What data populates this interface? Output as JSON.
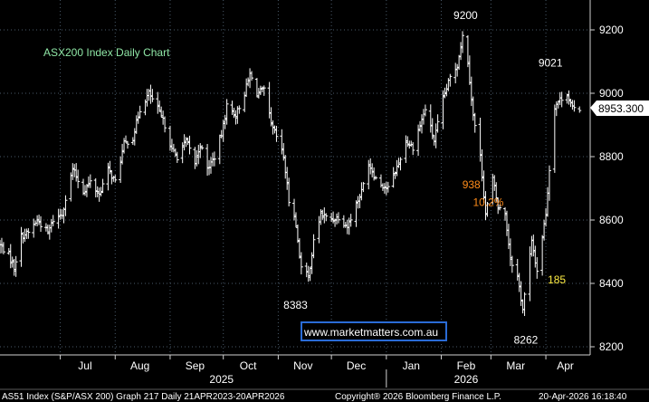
{
  "chart_data": {
    "type": "ohlc",
    "title": "ASX200 Index Daily Chart",
    "ylim": [
      8200,
      9300
    ],
    "yticks": [
      8200,
      8400,
      8600,
      8800,
      9000,
      9200
    ],
    "grid": true,
    "last_price_label": "8953.300",
    "last_price": 8953.3,
    "months": [
      {
        "label": "Jul",
        "x": "2025-07-15"
      },
      {
        "label": "Aug",
        "x": "2025-08-15"
      },
      {
        "label": "Sep",
        "x": "2025-09-15"
      },
      {
        "label": "Oct",
        "x": "2025-10-15"
      },
      {
        "label": "Nov",
        "x": "2025-11-15"
      },
      {
        "label": "Dec",
        "x": "2025-12-15"
      },
      {
        "label": "Jan",
        "x": "2026-01-15"
      },
      {
        "label": "Feb",
        "x": "2026-02-15"
      },
      {
        "label": "Mar",
        "x": "2026-03-15"
      },
      {
        "label": "Apr",
        "x": "2026-04-12"
      }
    ],
    "years": [
      {
        "label": "2025",
        "x": "2025-09-30"
      },
      {
        "label": "2026",
        "x": "2026-02-15"
      }
    ],
    "year_divider": "2026-01-01",
    "x_start": "2025-05-28",
    "x_end": "2026-04-26",
    "annotations": [
      {
        "text": "9200",
        "x": "2026-02-13",
        "y": 9200,
        "color": "white"
      },
      {
        "text": "9021",
        "x": "2026-04-06",
        "y": 9021,
        "color": "white"
      },
      {
        "text": "8383",
        "x": "2025-11-07",
        "y": 8383,
        "color": "white"
      },
      {
        "text": "8262",
        "x": "2026-03-19",
        "y": 8262,
        "color": "white"
      },
      {
        "text": "938",
        "x": "2026-02-21",
        "y": 8700,
        "color": "orange"
      },
      {
        "text": "10.2%",
        "x": "2026-02-27",
        "y": 8645,
        "color": "orange"
      },
      {
        "text": "185",
        "x": "2026-03-31",
        "y": 8400,
        "color": "yellow"
      }
    ],
    "control_points": [
      [
        "2025-05-28",
        8520
      ],
      [
        "2025-06-02",
        8490
      ],
      [
        "2025-06-05",
        8450
      ],
      [
        "2025-06-09",
        8550
      ],
      [
        "2025-06-13",
        8560
      ],
      [
        "2025-06-18",
        8600
      ],
      [
        "2025-06-24",
        8560
      ],
      [
        "2025-06-27",
        8600
      ],
      [
        "2025-07-02",
        8620
      ],
      [
        "2025-07-08",
        8760
      ],
      [
        "2025-07-14",
        8690
      ],
      [
        "2025-07-18",
        8720
      ],
      [
        "2025-07-23",
        8680
      ],
      [
        "2025-07-28",
        8760
      ],
      [
        "2025-08-01",
        8720
      ],
      [
        "2025-08-06",
        8840
      ],
      [
        "2025-08-11",
        8860
      ],
      [
        "2025-08-15",
        8950
      ],
      [
        "2025-08-20",
        9000
      ],
      [
        "2025-08-25",
        8950
      ],
      [
        "2025-08-29",
        8900
      ],
      [
        "2025-09-02",
        8820
      ],
      [
        "2025-09-05",
        8800
      ],
      [
        "2025-09-10",
        8850
      ],
      [
        "2025-09-15",
        8780
      ],
      [
        "2025-09-18",
        8840
      ],
      [
        "2025-09-22",
        8760
      ],
      [
        "2025-09-26",
        8800
      ],
      [
        "2025-09-30",
        8870
      ],
      [
        "2025-10-03",
        8960
      ],
      [
        "2025-10-08",
        8930
      ],
      [
        "2025-10-13",
        9000
      ],
      [
        "2025-10-16",
        9060
      ],
      [
        "2025-10-20",
        9000
      ],
      [
        "2025-10-24",
        9010
      ],
      [
        "2025-10-28",
        8900
      ],
      [
        "2025-11-01",
        8850
      ],
      [
        "2025-11-04",
        8800
      ],
      [
        "2025-11-07",
        8660
      ],
      [
        "2025-11-10",
        8620
      ],
      [
        "2025-11-14",
        8450
      ],
      [
        "2025-11-18",
        8420
      ],
      [
        "2025-11-21",
        8530
      ],
      [
        "2025-11-25",
        8620
      ],
      [
        "2025-11-30",
        8600
      ],
      [
        "2025-12-05",
        8610
      ],
      [
        "2025-12-10",
        8580
      ],
      [
        "2025-12-15",
        8650
      ],
      [
        "2025-12-18",
        8690
      ],
      [
        "2025-12-22",
        8780
      ],
      [
        "2025-12-27",
        8720
      ],
      [
        "2026-01-02",
        8700
      ],
      [
        "2026-01-08",
        8780
      ],
      [
        "2026-01-12",
        8850
      ],
      [
        "2026-01-16",
        8830
      ],
      [
        "2026-01-20",
        8900
      ],
      [
        "2026-01-23",
        8950
      ],
      [
        "2026-01-28",
        8850
      ],
      [
        "2026-02-02",
        8980
      ],
      [
        "2026-02-06",
        9050
      ],
      [
        "2026-02-10",
        9090
      ],
      [
        "2026-02-13",
        9180
      ],
      [
        "2026-02-16",
        9100
      ],
      [
        "2026-02-19",
        8930
      ],
      [
        "2026-02-23",
        8800
      ],
      [
        "2026-02-26",
        8620
      ],
      [
        "2026-03-02",
        8730
      ],
      [
        "2026-03-05",
        8640
      ],
      [
        "2026-03-09",
        8620
      ],
      [
        "2026-03-12",
        8480
      ],
      [
        "2026-03-16",
        8420
      ],
      [
        "2026-03-19",
        8320
      ],
      [
        "2026-03-24",
        8530
      ],
      [
        "2026-03-27",
        8440
      ],
      [
        "2026-04-01",
        8620
      ],
      [
        "2026-04-03",
        8760
      ],
      [
        "2026-04-06",
        8960
      ],
      [
        "2026-04-09",
        8980
      ],
      [
        "2026-04-13",
        9000
      ],
      [
        "2026-04-16",
        8950
      ],
      [
        "2026-04-20",
        8953
      ]
    ]
  },
  "watermark": "www.marketmatters.com.au",
  "footer": {
    "left": "AS51 Index (S&P/ASX 200) Graph 217 Daily 21APR2023-20APR2026",
    "center": "Copyright® 2026 Bloomberg Finance L.P.",
    "right": "20-Apr-2026 16:18:40"
  },
  "colors": {
    "background": "#000000",
    "bars": "#ffffff",
    "grid": "#4a5a6a",
    "title": "#8fe6a6",
    "annotation_orange": "#ff8c1a",
    "annotation_yellow": "#ffee44",
    "watermark_border": "#2a6bd6"
  }
}
